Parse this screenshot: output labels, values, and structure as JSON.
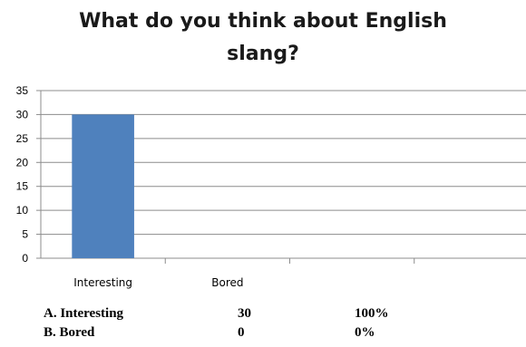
{
  "chart_data": {
    "type": "bar",
    "title_lines": [
      "What do you think about English",
      "slang?"
    ],
    "categories": [
      "Interesting",
      "Bored",
      "",
      ""
    ],
    "values": [
      30,
      0,
      null,
      null
    ],
    "ylim": [
      0,
      35
    ],
    "yticks": [
      0,
      5,
      10,
      15,
      20,
      25,
      30,
      35
    ],
    "grid": true,
    "bar_color": "#4f81bd",
    "legend": "none"
  },
  "summary": {
    "rows": [
      {
        "label": "A.  Interesting",
        "count": "30",
        "percent": "100%"
      },
      {
        "label": "B.  Bored",
        "count": "0",
        "percent": "0%"
      }
    ]
  }
}
